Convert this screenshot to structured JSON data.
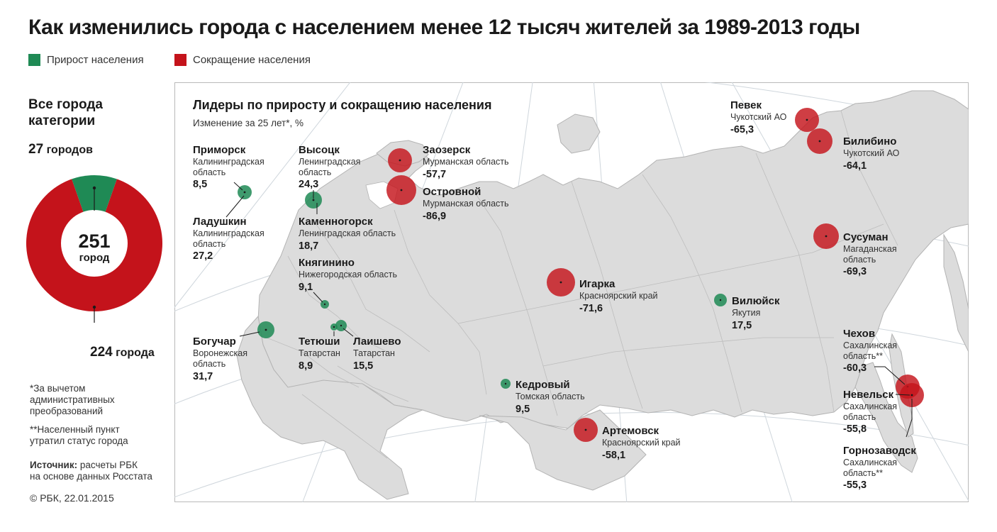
{
  "title": "Как изменились города с населением менее 12 тысяч жителей за 1989-2013 годы",
  "legend": {
    "growth": {
      "label": "Прирост населения",
      "color": "#1f8a55"
    },
    "decline": {
      "label": "Сокращение населения",
      "color": "#c4131b"
    }
  },
  "side": {
    "title_line1": "Все города",
    "title_line2": "категории",
    "growth_count": "27",
    "growth_word": "городов",
    "decline_count": "224",
    "decline_word": "города",
    "total_count": "251",
    "total_word": "город"
  },
  "chart_data": {
    "type": "pie",
    "categories": [
      "Прирост населения",
      "Сокращение населения"
    ],
    "values": [
      27,
      224
    ]
  },
  "notes": {
    "n1_l1": "*За вычетом",
    "n1_l2": "административных",
    "n1_l3": "преобразований",
    "n2_l1": "**Населенный пункт",
    "n2_l2": "утратил статус города",
    "src_bold": "Источник:",
    "src_l1": "расчеты РБК",
    "src_l2": "на основе данных Росстата",
    "copyright": "© РБК, 22.01.2015"
  },
  "map": {
    "heading": "Лидеры по приросту и сокращению населения",
    "subheading": "Изменение за 25 лет*, %",
    "cities": {
      "primorsk": {
        "name": "Приморск",
        "region1": "Калининградская",
        "region2": "область",
        "value": "8,5"
      },
      "ladushkin": {
        "name": "Ладушкин",
        "region1": "Калининградская",
        "region2": "область",
        "value": "27,2"
      },
      "vysotsk": {
        "name": "Высоцк",
        "region1": "Ленинградская",
        "region2": "область",
        "value": "24,3"
      },
      "kamennogorsk": {
        "name": "Каменногорск",
        "region1": "Ленинградская область",
        "value": "18,7"
      },
      "knyaginino": {
        "name": "Княгинино",
        "region1": "Нижегородская область",
        "value": "9,1"
      },
      "boguchar": {
        "name": "Богучар",
        "region1": "Воронежская",
        "region2": "область",
        "value": "31,7"
      },
      "tetyushi": {
        "name": "Тетюши",
        "region1": "Татарстан",
        "value": "8,9"
      },
      "laishevo": {
        "name": "Лаишево",
        "region1": "Татарстан",
        "value": "15,5"
      },
      "zaozersk": {
        "name": "Заозерск",
        "region1": "Мурманская область",
        "value": "-57,7"
      },
      "ostrovnoy": {
        "name": "Островной",
        "region1": "Мурманская область",
        "value": "-86,9"
      },
      "igarka": {
        "name": "Игарка",
        "region1": "Красноярский край",
        "value": "-71,6"
      },
      "kedrovy": {
        "name": "Кедровый",
        "region1": "Томская область",
        "value": "9,5"
      },
      "artemovsk": {
        "name": "Артемовск",
        "region1": "Красноярский край",
        "value": "-58,1"
      },
      "vilyuysk": {
        "name": "Вилюйск",
        "region1": "Якутия",
        "value": "17,5"
      },
      "pevek": {
        "name": "Певек",
        "region1": "Чукотский АО",
        "value": "-65,3"
      },
      "bilibino": {
        "name": "Билибино",
        "region1": "Чукотский АО",
        "value": "-64,1"
      },
      "susuman": {
        "name": "Сусуман",
        "region1": "Магаданская",
        "region2": "область",
        "value": "-69,3"
      },
      "chekhov": {
        "name": "Чехов",
        "region1": "Сахалинская",
        "region2": "область**",
        "value": "-60,3"
      },
      "nevelsk": {
        "name": "Невельск",
        "region1": "Сахалинская",
        "region2": "область",
        "value": "-55,8"
      },
      "gornozavodsk": {
        "name": "Горнозаводск",
        "region1": "Сахалинская",
        "region2": "область**",
        "value": "-55,3"
      }
    }
  }
}
